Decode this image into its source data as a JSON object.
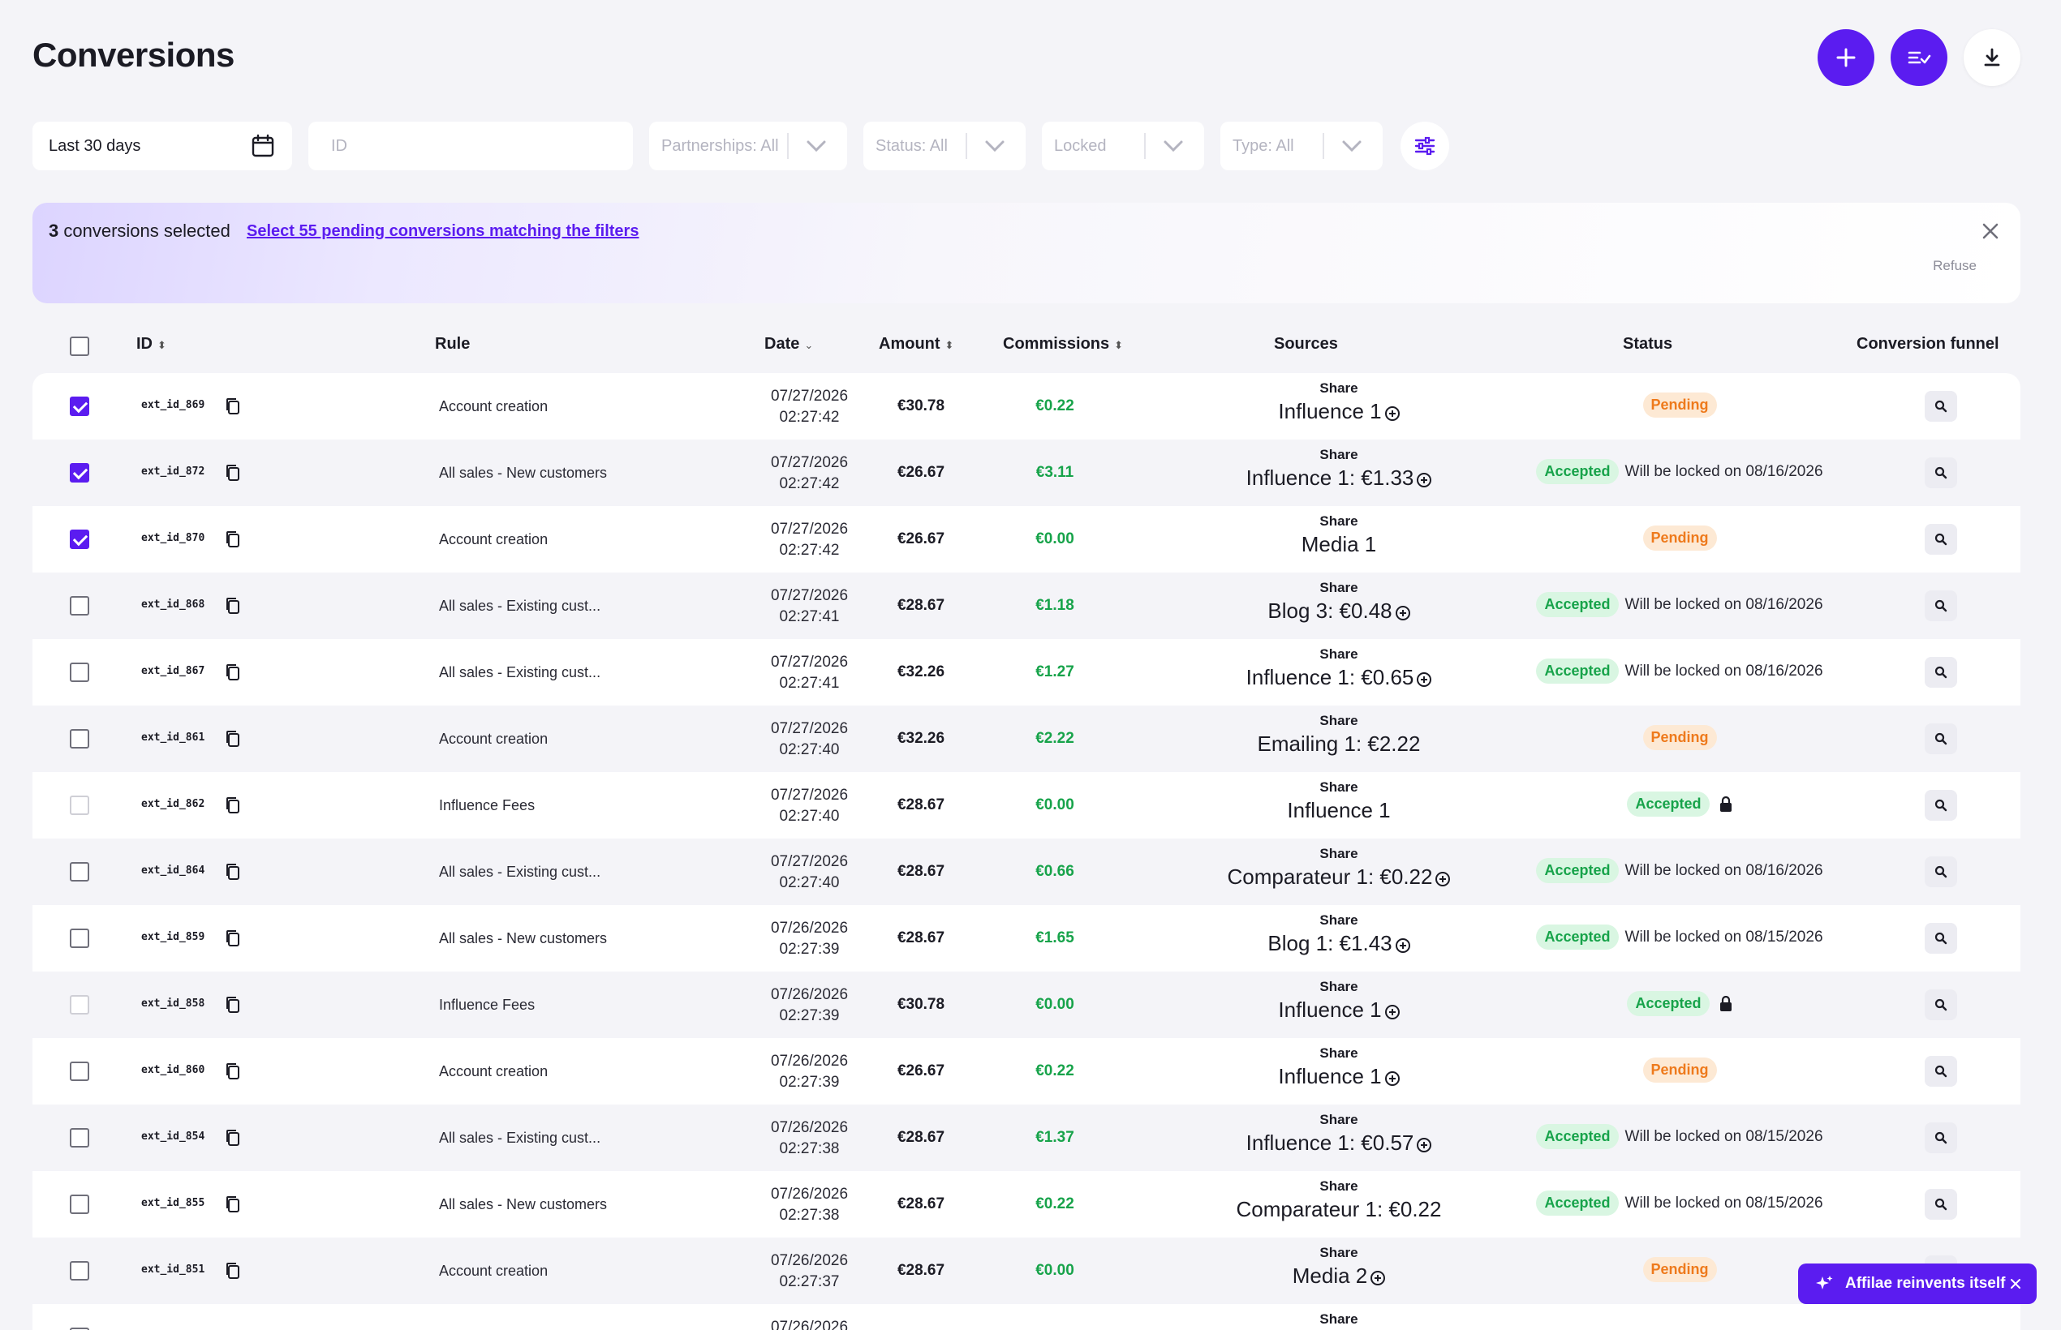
{
  "header": {
    "title": "Conversions"
  },
  "filters": {
    "date_range": "Last 30 days",
    "id_placeholder": "ID",
    "partnerships": "Partnerships: All",
    "status": "Status: All",
    "locked": "Locked",
    "type": "Type: All"
  },
  "selection": {
    "count": "3",
    "count_text": " conversions selected",
    "select_all_link": "Select 55 pending conversions matching the filters",
    "refuse": "Refuse"
  },
  "columns": {
    "id": "ID",
    "rule": "Rule",
    "date": "Date",
    "amount": "Amount",
    "commissions": "Commissions",
    "sources": "Sources",
    "status": "Status",
    "funnel": "Conversion funnel"
  },
  "rows": [
    {
      "checked": true,
      "disabled": false,
      "id": "ext_id_869",
      "rule": "Account creation",
      "date": "07/27/2026",
      "time": "02:27:42",
      "amount": "€30.78",
      "commission": "€0.22",
      "source_label": "Share",
      "source": "Influence 1",
      "source_plus": true,
      "status": "Pending",
      "lock_text": "",
      "locked": false
    },
    {
      "checked": true,
      "disabled": false,
      "id": "ext_id_872",
      "rule": "All sales - New customers",
      "date": "07/27/2026",
      "time": "02:27:42",
      "amount": "€26.67",
      "commission": "€3.11",
      "source_label": "Share",
      "source": "Influence 1: €1.33",
      "source_plus": true,
      "status": "Accepted",
      "lock_text": "Will be locked on 08/16/2026",
      "locked": false
    },
    {
      "checked": true,
      "disabled": false,
      "id": "ext_id_870",
      "rule": "Account creation",
      "date": "07/27/2026",
      "time": "02:27:42",
      "amount": "€26.67",
      "commission": "€0.00",
      "source_label": "Share",
      "source": "Media 1",
      "source_plus": false,
      "status": "Pending",
      "lock_text": "",
      "locked": false
    },
    {
      "checked": false,
      "disabled": false,
      "id": "ext_id_868",
      "rule": "All sales - Existing cust...",
      "date": "07/27/2026",
      "time": "02:27:41",
      "amount": "€28.67",
      "commission": "€1.18",
      "source_label": "Share",
      "source": "Blog 3: €0.48",
      "source_plus": true,
      "status": "Accepted",
      "lock_text": "Will be locked on 08/16/2026",
      "locked": false
    },
    {
      "checked": false,
      "disabled": false,
      "id": "ext_id_867",
      "rule": "All sales - Existing cust...",
      "date": "07/27/2026",
      "time": "02:27:41",
      "amount": "€32.26",
      "commission": "€1.27",
      "source_label": "Share",
      "source": "Influence 1: €0.65",
      "source_plus": true,
      "status": "Accepted",
      "lock_text": "Will be locked on 08/16/2026",
      "locked": false
    },
    {
      "checked": false,
      "disabled": false,
      "id": "ext_id_861",
      "rule": "Account creation",
      "date": "07/27/2026",
      "time": "02:27:40",
      "amount": "€32.26",
      "commission": "€2.22",
      "source_label": "Share",
      "source": "Emailing 1: €2.22",
      "source_plus": false,
      "status": "Pending",
      "lock_text": "",
      "locked": false
    },
    {
      "checked": false,
      "disabled": true,
      "id": "ext_id_862",
      "rule": "Influence Fees",
      "date": "07/27/2026",
      "time": "02:27:40",
      "amount": "€28.67",
      "commission": "€0.00",
      "source_label": "Share",
      "source": "Influence 1",
      "source_plus": false,
      "status": "Accepted",
      "lock_text": "",
      "locked": true
    },
    {
      "checked": false,
      "disabled": false,
      "id": "ext_id_864",
      "rule": "All sales - Existing cust...",
      "date": "07/27/2026",
      "time": "02:27:40",
      "amount": "€28.67",
      "commission": "€0.66",
      "source_label": "Share",
      "source": "Comparateur 1: €0.22",
      "source_plus": true,
      "status": "Accepted",
      "lock_text": "Will be locked on 08/16/2026",
      "locked": false
    },
    {
      "checked": false,
      "disabled": false,
      "id": "ext_id_859",
      "rule": "All sales - New customers",
      "date": "07/26/2026",
      "time": "02:27:39",
      "amount": "€28.67",
      "commission": "€1.65",
      "source_label": "Share",
      "source": "Blog 1: €1.43",
      "source_plus": true,
      "status": "Accepted",
      "lock_text": "Will be locked on 08/15/2026",
      "locked": false
    },
    {
      "checked": false,
      "disabled": true,
      "id": "ext_id_858",
      "rule": "Influence Fees",
      "date": "07/26/2026",
      "time": "02:27:39",
      "amount": "€30.78",
      "commission": "€0.00",
      "source_label": "Share",
      "source": "Influence 1",
      "source_plus": true,
      "status": "Accepted",
      "lock_text": "",
      "locked": true
    },
    {
      "checked": false,
      "disabled": false,
      "id": "ext_id_860",
      "rule": "Account creation",
      "date": "07/26/2026",
      "time": "02:27:39",
      "amount": "€26.67",
      "commission": "€0.22",
      "source_label": "Share",
      "source": "Influence 1",
      "source_plus": true,
      "status": "Pending",
      "lock_text": "",
      "locked": false
    },
    {
      "checked": false,
      "disabled": false,
      "id": "ext_id_854",
      "rule": "All sales - Existing cust...",
      "date": "07/26/2026",
      "time": "02:27:38",
      "amount": "€28.67",
      "commission": "€1.37",
      "source_label": "Share",
      "source": "Influence 1: €0.57",
      "source_plus": true,
      "status": "Accepted",
      "lock_text": "Will be locked on 08/15/2026",
      "locked": false
    },
    {
      "checked": false,
      "disabled": false,
      "id": "ext_id_855",
      "rule": "All sales - New customers",
      "date": "07/26/2026",
      "time": "02:27:38",
      "amount": "€28.67",
      "commission": "€0.22",
      "source_label": "Share",
      "source": "Comparateur 1: €0.22",
      "source_plus": false,
      "status": "Accepted",
      "lock_text": "Will be locked on 08/15/2026",
      "locked": false
    },
    {
      "checked": false,
      "disabled": false,
      "id": "ext_id_851",
      "rule": "Account creation",
      "date": "07/26/2026",
      "time": "02:27:37",
      "amount": "€28.67",
      "commission": "€0.00",
      "source_label": "Share",
      "source": "Media 2",
      "source_plus": true,
      "status": "Pending",
      "lock_text": "",
      "locked": false
    },
    {
      "checked": false,
      "disabled": false,
      "id": "",
      "rule": "",
      "date": "07/26/2026",
      "time": "",
      "amount": "",
      "commission": "",
      "source_label": "Share",
      "source": "",
      "source_plus": false,
      "status": "",
      "lock_text": "",
      "locked": false
    }
  ],
  "promo": {
    "text": "Affilae reinvents itself"
  },
  "colors": {
    "accent": "#5b1cf0",
    "pending": "#ee7a1c",
    "accepted": "#17a34a"
  }
}
